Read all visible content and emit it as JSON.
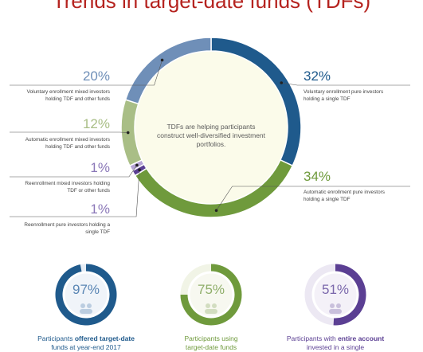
{
  "header": {
    "title": "Trends in target-date funds (TDFs)"
  },
  "center_note": "TDFs are helping participants construct well-diversified investment portfolios.",
  "chart_data": [
    {
      "type": "pie",
      "title": "",
      "slices": [
        {
          "pct": "32%",
          "value": 32,
          "label": "Voluntary enrollment pure investors holding a single TDF",
          "color": "#1f5a8c"
        },
        {
          "pct": "34%",
          "value": 34,
          "label": "Automatic enrollment pure investors holding a single TDF",
          "color": "#6f9a3c"
        },
        {
          "pct": "1%",
          "value": 1,
          "label": "Reenrollment pure investors holding a single TDF",
          "color": "#5b3f93"
        },
        {
          "pct": "1%",
          "value": 1,
          "label": "Reenrollment mixed investors holding TDF or other funds",
          "color": "#b6a4d6"
        },
        {
          "pct": "12%",
          "value": 12,
          "label": "Automatic enrollment mixed investors holding TDF and other funds",
          "color": "#a9be86"
        },
        {
          "pct": "20%",
          "value": 20,
          "label": "Voluntary enrollment mixed investors holding TDF and other funds",
          "color": "#6f8fb8"
        }
      ]
    },
    {
      "type": "pie",
      "value": 97,
      "pct": "97%",
      "caption_pre": "Participants ",
      "caption_bold": "offered target-date",
      "caption_post": "funds at year-end 2017",
      "color": "#1f5a8c",
      "track": "#e6edf5",
      "pct_color": "#5a86b4"
    },
    {
      "type": "pie",
      "value": 75,
      "pct": "75%",
      "caption_pre": "Participants using",
      "caption_bold": "",
      "caption_post": "target-date funds",
      "color": "#6f9a3c",
      "track": "#f1f4e6",
      "pct_color": "#8fae6a"
    },
    {
      "type": "pie",
      "value": 51,
      "pct": "51%",
      "caption_pre": "Participants with ",
      "caption_bold": "entire account",
      "caption_post": "invested in a single",
      "color": "#5b3f93",
      "track": "#ece8f3",
      "pct_color": "#7a67ab"
    }
  ],
  "colors": {
    "title": "#b5231f",
    "center_fill": "#fbfbea",
    "leader": "#555555"
  }
}
